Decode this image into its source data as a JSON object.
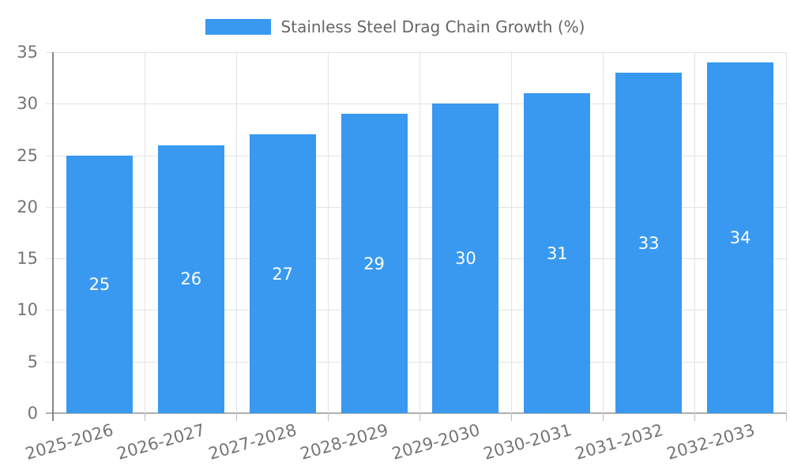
{
  "chart_data": {
    "type": "bar",
    "title": "Stainless Steel Drag Chain Growth (%)",
    "categories": [
      "2025-2026",
      "2026-2027",
      "2027-2028",
      "2028-2029",
      "2029-2030",
      "2030-2031",
      "2031-2032",
      "2032-2033"
    ],
    "values": [
      25,
      26,
      27,
      29,
      30,
      31,
      33,
      34
    ],
    "xlabel": "",
    "ylabel": "",
    "ylim": [
      0,
      35
    ],
    "yticks": [
      0,
      5,
      10,
      15,
      20,
      25,
      30,
      35
    ],
    "grid": true,
    "legend_position": "top",
    "bar_color": "#3999f0",
    "value_label_color": "#ffffff",
    "tick_label_color": "#757575",
    "legend_text_color": "#666666",
    "gridline_color": "#e3e3e3"
  }
}
